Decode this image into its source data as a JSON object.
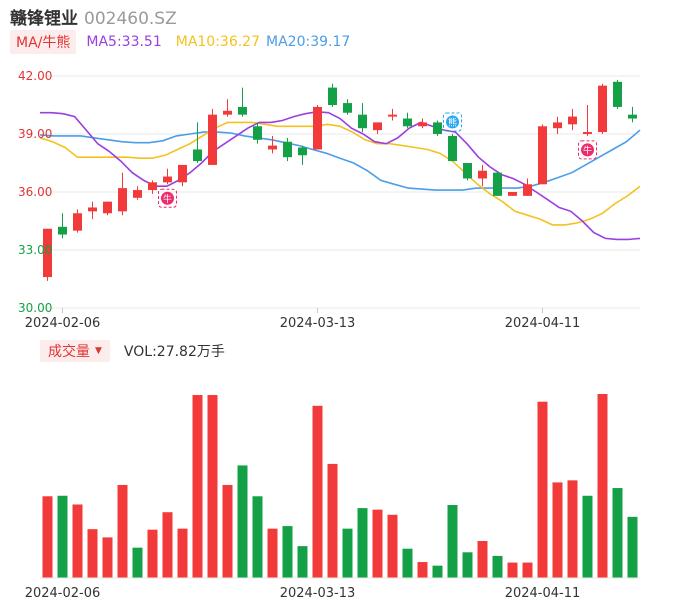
{
  "header": {
    "name": "赣锋锂业",
    "code": "002460.SZ"
  },
  "ma_legend": {
    "tag": "MA/牛熊",
    "ma5": "MA5:33.51",
    "ma10": "MA10:36.27",
    "ma20": "MA20:39.17"
  },
  "volume_legend": {
    "tag": "成交量",
    "value": "VOL:27.82万手"
  },
  "colors": {
    "up": "#f23a3a",
    "down": "#14a046",
    "ma5": "#9b3fe0",
    "ma10": "#f5c11f",
    "ma20": "#4a9ee8",
    "axis_text_red": "#e03535",
    "axis_text_green": "#14a046",
    "bull_badge": "#ee2a6a",
    "bear_badge": "#22a7f0"
  },
  "chart_data": [
    {
      "type": "candlestick",
      "y_ticks": [
        "42.00",
        "39.00",
        "36.00",
        "33.00",
        "30.00"
      ],
      "ylim": [
        30,
        42
      ],
      "x_tick_labels": [
        "2024-02-06",
        "2024-03-13",
        "2024-04-11"
      ],
      "x_tick_index": [
        1,
        18,
        33
      ],
      "candles": [
        {
          "o": 31.6,
          "c": 34.1,
          "h": 34.1,
          "l": 31.4
        },
        {
          "o": 34.2,
          "c": 33.8,
          "h": 34.9,
          "l": 33.6
        },
        {
          "o": 34.0,
          "c": 34.9,
          "h": 35.1,
          "l": 33.9
        },
        {
          "o": 35.0,
          "c": 35.2,
          "h": 35.5,
          "l": 34.6
        },
        {
          "o": 34.9,
          "c": 35.5,
          "h": 35.5,
          "l": 34.8
        },
        {
          "o": 35.0,
          "c": 36.2,
          "h": 37.0,
          "l": 34.8
        },
        {
          "o": 35.7,
          "c": 36.1,
          "h": 36.3,
          "l": 35.6
        },
        {
          "o": 36.1,
          "c": 36.5,
          "h": 36.6,
          "l": 35.9
        },
        {
          "o": 36.5,
          "c": 36.8,
          "h": 37.2,
          "l": 36.4
        },
        {
          "o": 36.5,
          "c": 37.4,
          "h": 37.4,
          "l": 36.3
        },
        {
          "o": 38.2,
          "c": 37.6,
          "h": 39.6,
          "l": 37.5
        },
        {
          "o": 37.4,
          "c": 40.0,
          "h": 40.3,
          "l": 37.4
        },
        {
          "o": 40.0,
          "c": 40.2,
          "h": 40.8,
          "l": 39.9
        },
        {
          "o": 40.4,
          "c": 40.0,
          "h": 41.4,
          "l": 39.9
        },
        {
          "o": 39.4,
          "c": 38.7,
          "h": 39.6,
          "l": 38.5
        },
        {
          "o": 38.2,
          "c": 38.4,
          "h": 38.9,
          "l": 38.0
        },
        {
          "o": 38.6,
          "c": 37.8,
          "h": 38.8,
          "l": 37.6
        },
        {
          "o": 38.3,
          "c": 37.9,
          "h": 38.4,
          "l": 37.4
        },
        {
          "o": 38.2,
          "c": 40.4,
          "h": 40.5,
          "l": 38.2
        },
        {
          "o": 41.4,
          "c": 40.5,
          "h": 41.6,
          "l": 40.4
        },
        {
          "o": 40.6,
          "c": 40.1,
          "h": 40.8,
          "l": 40.0
        },
        {
          "o": 40.0,
          "c": 39.3,
          "h": 40.6,
          "l": 39.1
        },
        {
          "o": 39.2,
          "c": 39.6,
          "h": 39.6,
          "l": 39.0
        },
        {
          "o": 39.9,
          "c": 40.0,
          "h": 40.3,
          "l": 39.7
        },
        {
          "o": 39.8,
          "c": 39.4,
          "h": 40.1,
          "l": 39.3
        },
        {
          "o": 39.4,
          "c": 39.6,
          "h": 39.8,
          "l": 39.3
        },
        {
          "o": 39.6,
          "c": 39.0,
          "h": 39.7,
          "l": 38.9
        },
        {
          "o": 38.9,
          "c": 37.6,
          "h": 39.0,
          "l": 37.6
        },
        {
          "o": 37.5,
          "c": 36.7,
          "h": 37.5,
          "l": 36.6
        },
        {
          "o": 36.7,
          "c": 37.1,
          "h": 37.4,
          "l": 36.3
        },
        {
          "o": 37.0,
          "c": 35.8,
          "h": 37.0,
          "l": 35.8
        },
        {
          "o": 35.8,
          "c": 36.0,
          "h": 36.0,
          "l": 35.8
        },
        {
          "o": 35.8,
          "c": 36.4,
          "h": 36.7,
          "l": 35.8
        },
        {
          "o": 36.4,
          "c": 39.4,
          "h": 39.5,
          "l": 36.4
        },
        {
          "o": 39.3,
          "c": 39.6,
          "h": 39.9,
          "l": 39.0
        },
        {
          "o": 39.5,
          "c": 39.9,
          "h": 40.3,
          "l": 39.2
        },
        {
          "o": 39.0,
          "c": 39.1,
          "h": 40.5,
          "l": 38.9
        },
        {
          "o": 39.1,
          "c": 41.5,
          "h": 41.6,
          "l": 39.0
        },
        {
          "o": 41.7,
          "c": 40.4,
          "h": 41.8,
          "l": 40.3
        },
        {
          "o": 40.0,
          "c": 39.8,
          "h": 40.4,
          "l": 39.6
        }
      ],
      "ma5": [
        40.1,
        40.1,
        40.05,
        39.9,
        39.2,
        38.5,
        38.1,
        37.6,
        37.0,
        36.6,
        36.3,
        36.3,
        36.6,
        37.0,
        37.5,
        38.1,
        38.5,
        38.9,
        39.3,
        39.6,
        39.6,
        39.7,
        39.9,
        40.05,
        40.15,
        40.1,
        39.8,
        39.3,
        39.0,
        38.6,
        38.5,
        38.8,
        39.3,
        39.6,
        39.4,
        39.2,
        39.1,
        38.5,
        37.8,
        37.3,
        36.9,
        36.7,
        36.4,
        36.0,
        35.6,
        35.2,
        35.0,
        34.5,
        33.9,
        33.6,
        33.55,
        33.55,
        33.6
      ],
      "ma10": [
        38.8,
        38.6,
        38.3,
        37.8,
        37.8,
        37.8,
        37.8,
        37.8,
        37.75,
        37.75,
        37.9,
        38.2,
        38.5,
        38.9,
        39.3,
        39.6,
        39.6,
        39.6,
        39.5,
        39.4,
        39.4,
        39.4,
        39.4,
        39.5,
        39.4,
        39.1,
        38.7,
        38.5,
        38.5,
        38.4,
        38.3,
        38.2,
        38.0,
        37.6,
        37.0,
        36.4,
        35.9,
        35.5,
        35.0,
        34.8,
        34.6,
        34.3,
        34.3,
        34.4,
        34.6,
        34.9,
        35.4,
        35.8,
        36.3
      ],
      "ma20": [
        38.95,
        38.9,
        38.9,
        38.9,
        38.8,
        38.7,
        38.6,
        38.55,
        38.55,
        38.65,
        38.9,
        39.0,
        39.1,
        39.1,
        39.05,
        38.9,
        38.8,
        38.7,
        38.55,
        38.4,
        38.2,
        38.0,
        37.75,
        37.5,
        37.1,
        36.6,
        36.4,
        36.2,
        36.15,
        36.1,
        36.1,
        36.1,
        36.2,
        36.2,
        36.2,
        36.2,
        36.3,
        36.5,
        36.75,
        37.0,
        37.4,
        37.8,
        38.2,
        38.6,
        39.2
      ],
      "annotations": [
        {
          "index": 8,
          "label": "牛",
          "kind": "bull"
        },
        {
          "index": 27,
          "label": "熊",
          "kind": "bear"
        },
        {
          "index": 36,
          "label": "牛",
          "kind": "bull"
        }
      ]
    },
    {
      "type": "bar",
      "series_name": "成交量",
      "volumes": [
        15.9,
        16.0,
        14.3,
        9.5,
        7.9,
        18.1,
        5.9,
        9.4,
        12.8,
        9.6,
        35.6,
        35.6,
        18.1,
        21.9,
        15.9,
        9.6,
        10.1,
        6.2,
        33.5,
        22.2,
        9.6,
        13.6,
        13.3,
        12.3,
        5.7,
        3.1,
        2.4,
        14.2,
        5.0,
        7.2,
        4.3,
        3.0,
        3.0,
        34.3,
        18.6,
        19.0,
        16.0,
        35.8,
        17.5,
        11.9
      ],
      "up_flags": [
        1,
        0,
        1,
        1,
        1,
        1,
        0,
        1,
        1,
        1,
        1,
        1,
        1,
        0,
        0,
        1,
        0,
        0,
        1,
        1,
        0,
        0,
        1,
        1,
        0,
        1,
        0,
        0,
        0,
        1,
        0,
        1,
        1,
        1,
        1,
        1,
        0,
        1,
        0,
        0
      ],
      "x_tick_labels": [
        "2024-02-06",
        "2024-03-13",
        "2024-04-11"
      ]
    }
  ]
}
